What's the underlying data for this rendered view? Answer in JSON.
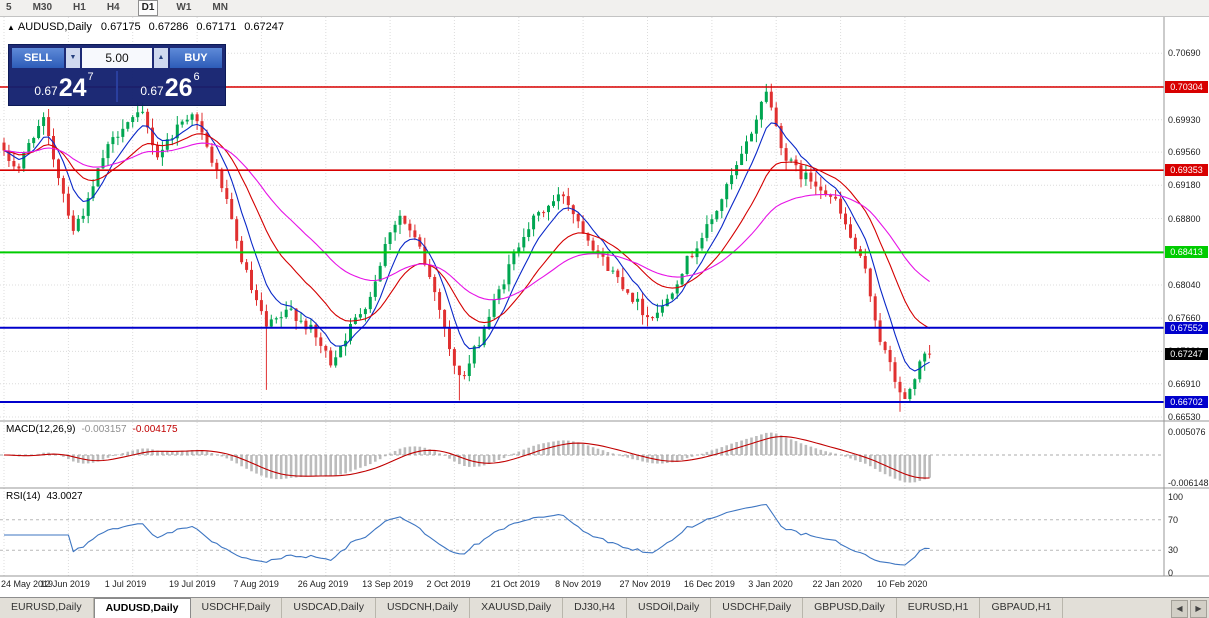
{
  "toolbar": {
    "periods": [
      {
        "label": "5",
        "active": false
      },
      {
        "label": "M30",
        "active": false
      },
      {
        "label": "H1",
        "active": false
      },
      {
        "label": "H4",
        "active": false
      },
      {
        "label": "D1",
        "active": true
      },
      {
        "label": "W1",
        "active": false
      },
      {
        "label": "MN",
        "active": false
      }
    ]
  },
  "header": {
    "marker": "▲",
    "symbol": "AUDUSD,Daily",
    "open": "0.67175",
    "high": "0.67286",
    "low": "0.67171",
    "close": "0.67247"
  },
  "trade_panel": {
    "sell_label": "SELL",
    "buy_label": "BUY",
    "volume": "5.00",
    "spin_down": "▼",
    "spin_up": "▲",
    "sell_price": {
      "prefix": "0.67",
      "big": "24",
      "sup": "7"
    },
    "buy_price": {
      "prefix": "0.67",
      "big": "26",
      "sup": "6"
    }
  },
  "macd_panel": {
    "title": "MACD(12,26,9)",
    "main_value": "-0.003157",
    "signal_value": "-0.004175",
    "axis": [
      {
        "value": 0.005076,
        "label": "0.005076"
      },
      {
        "value": -0.006148,
        "label": "-0.006148"
      }
    ]
  },
  "rsi_panel": {
    "title": "RSI(14)",
    "value": "43.0027",
    "axis": [
      {
        "value": 100,
        "label": "100"
      },
      {
        "value": 70,
        "label": "70"
      },
      {
        "value": 30,
        "label": "30"
      },
      {
        "value": 0,
        "label": "0"
      }
    ],
    "guide_levels": [
      70,
      30
    ]
  },
  "chart_data": {
    "type": "candlestick",
    "symbol": "AUDUSD",
    "timeframe": "Daily",
    "ohlc": {
      "open": 0.67175,
      "high": 0.67286,
      "low": 0.67171,
      "close": 0.67247
    },
    "price_axis_labels": [
      {
        "value": 0.7069,
        "label": "0.70690"
      },
      {
        "value": 0.7031,
        "label": "0.70310"
      },
      {
        "value": 0.6993,
        "label": "0.69930"
      },
      {
        "value": 0.6956,
        "label": "0.69560"
      },
      {
        "value": 0.6918,
        "label": "0.69180"
      },
      {
        "value": 0.688,
        "label": "0.68800"
      },
      {
        "value": 0.6841,
        "label": "0.68410"
      },
      {
        "value": 0.6804,
        "label": "0.68040"
      },
      {
        "value": 0.6766,
        "label": "0.67660"
      },
      {
        "value": 0.6728,
        "label": "0.67280"
      },
      {
        "value": 0.6691,
        "label": "0.66910"
      },
      {
        "value": 0.6653,
        "label": "0.66530"
      }
    ],
    "level_lines": [
      {
        "price": 0.70304,
        "color": "#d80000",
        "badge": "0.70304",
        "width": 1.6
      },
      {
        "price": 0.69353,
        "color": "#d80000",
        "badge": "0.69353",
        "width": 1.6
      },
      {
        "price": 0.68413,
        "color": "#00cc00",
        "badge": "0.68413",
        "width": 2
      },
      {
        "price": 0.67552,
        "color": "#0000cc",
        "badge": "0.67552",
        "width": 2
      },
      {
        "price": 0.66702,
        "color": "#0000cc",
        "badge": "0.66702",
        "width": 2
      }
    ],
    "current_price": {
      "value": 0.67247,
      "label": "0.67247",
      "badge_color": "#000000"
    },
    "date_axis": [
      {
        "label": "24 May 2019",
        "bar": 0
      },
      {
        "label": "12 Jun 2019",
        "bar": 13
      },
      {
        "label": "1 Jul 2019",
        "bar": 26
      },
      {
        "label": "19 Jul 2019",
        "bar": 39
      },
      {
        "label": "7 Aug 2019",
        "bar": 52
      },
      {
        "label": "26 Aug 2019",
        "bar": 65
      },
      {
        "label": "13 Sep 2019",
        "bar": 78
      },
      {
        "label": "2 Oct 2019",
        "bar": 91
      },
      {
        "label": "21 Oct 2019",
        "bar": 104
      },
      {
        "label": "8 Nov 2019",
        "bar": 117
      },
      {
        "label": "27 Nov 2019",
        "bar": 130
      },
      {
        "label": "16 Dec 2019",
        "bar": 143
      },
      {
        "label": "3 Jan 2020",
        "bar": 156
      },
      {
        "label": "22 Jan 2020",
        "bar": 169
      },
      {
        "label": "10 Feb 2020",
        "bar": 182
      }
    ],
    "bars_total": 188,
    "price_path": [
      [
        0,
        0.6952
      ],
      [
        3,
        0.6938
      ],
      [
        6,
        0.6978
      ],
      [
        8,
        0.699
      ],
      [
        11,
        0.693
      ],
      [
        14,
        0.6868
      ],
      [
        17,
        0.6898
      ],
      [
        20,
        0.695
      ],
      [
        24,
        0.6988
      ],
      [
        28,
        0.6998
      ],
      [
        31,
        0.6952
      ],
      [
        35,
        0.6985
      ],
      [
        38,
        0.7003
      ],
      [
        41,
        0.696
      ],
      [
        44,
        0.6918
      ],
      [
        47,
        0.6852
      ],
      [
        50,
        0.6798
      ],
      [
        53,
        0.6755
      ],
      [
        58,
        0.6775
      ],
      [
        62,
        0.6752
      ],
      [
        66,
        0.6716
      ],
      [
        70,
        0.6755
      ],
      [
        74,
        0.6792
      ],
      [
        78,
        0.6868
      ],
      [
        80,
        0.6883
      ],
      [
        84,
        0.6845
      ],
      [
        88,
        0.678
      ],
      [
        91,
        0.6708
      ],
      [
        93,
        0.67
      ],
      [
        97,
        0.6755
      ],
      [
        101,
        0.681
      ],
      [
        105,
        0.6865
      ],
      [
        109,
        0.689
      ],
      [
        113,
        0.6908
      ],
      [
        117,
        0.6868
      ],
      [
        121,
        0.6832
      ],
      [
        125,
        0.6805
      ],
      [
        130,
        0.6768
      ],
      [
        133,
        0.6778
      ],
      [
        137,
        0.6822
      ],
      [
        140,
        0.685
      ],
      [
        143,
        0.6878
      ],
      [
        146,
        0.6915
      ],
      [
        149,
        0.695
      ],
      [
        152,
        0.6995
      ],
      [
        154,
        0.7028
      ],
      [
        156,
        0.6985
      ],
      [
        158,
        0.6948
      ],
      [
        161,
        0.693
      ],
      [
        165,
        0.6918
      ],
      [
        168,
        0.6898
      ],
      [
        171,
        0.6858
      ],
      [
        174,
        0.6818
      ],
      [
        177,
        0.6742
      ],
      [
        180,
        0.6695
      ],
      [
        182,
        0.667
      ],
      [
        184,
        0.67
      ],
      [
        186,
        0.6722
      ],
      [
        187,
        0.67247
      ]
    ],
    "spike_lows": [
      {
        "bar": 53,
        "low": 0.6684
      },
      {
        "bar": 92,
        "low": 0.6672
      },
      {
        "bar": 181,
        "low": 0.6659
      }
    ],
    "spike_highs": [
      {
        "bar": 154,
        "high": 0.7034
      }
    ],
    "moving_averages": [
      {
        "period": 7,
        "color": "#0a28c8",
        "method": "ema"
      },
      {
        "period": 18,
        "color": "#d40000",
        "method": "ema"
      },
      {
        "period": 40,
        "color": "#e614e6",
        "method": "ema"
      }
    ],
    "indicators": {
      "macd": {
        "fast": 12,
        "slow": 26,
        "signal": 9
      },
      "rsi": {
        "period": 14
      }
    },
    "candle_colors": {
      "up": "#00a651",
      "down": "#e03030"
    }
  },
  "tabs": {
    "items": [
      {
        "label": "EURUSD,Daily",
        "active": false
      },
      {
        "label": "AUDUSD,Daily",
        "active": true
      },
      {
        "label": "USDCHF,Daily",
        "active": false
      },
      {
        "label": "USDCAD,Daily",
        "active": false
      },
      {
        "label": "USDCNH,Daily",
        "active": false
      },
      {
        "label": "XAUUSD,Daily",
        "active": false
      },
      {
        "label": "DJ30,H4",
        "active": false
      },
      {
        "label": "USDOil,Daily",
        "active": false
      },
      {
        "label": "USDCHF,Daily",
        "active": false
      },
      {
        "label": "GBPUSD,Daily",
        "active": false
      },
      {
        "label": "EURUSD,H1",
        "active": false
      },
      {
        "label": "GBPAUD,H1",
        "active": false
      }
    ],
    "scroll_left": "◀",
    "scroll_right": "▶"
  }
}
